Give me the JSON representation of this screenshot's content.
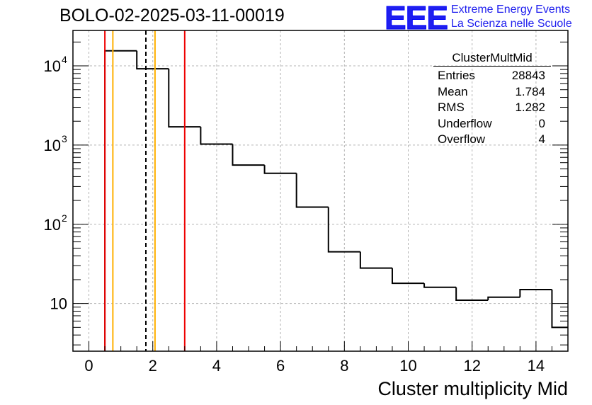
{
  "title": "BOLO-02-2025-03-11-00019",
  "logo": {
    "mark": "EEE",
    "line1": "Extreme Energy Events",
    "line2": "La Scienza nelle Scuole",
    "color": "#1f1fee"
  },
  "stats_box": {
    "name": "ClusterMultMid",
    "rows": [
      {
        "label": "Entries",
        "value": "28843"
      },
      {
        "label": "Mean",
        "value": "1.784"
      },
      {
        "label": "RMS",
        "value": "1.282"
      },
      {
        "label": "Underflow",
        "value": "0"
      },
      {
        "label": "Overflow",
        "value": "4"
      }
    ]
  },
  "chart_data": {
    "type": "bar",
    "style": "step-histogram",
    "title": "BOLO-02-2025-03-11-00019",
    "xlabel": "Cluster multiplicity Mid",
    "ylabel": "",
    "xlim": [
      -0.5,
      15.0
    ],
    "ylim": [
      2.5,
      28000
    ],
    "yscale": "log",
    "grid": true,
    "x_ticks": [
      0,
      2,
      4,
      6,
      8,
      10,
      12,
      14
    ],
    "y_ticks": [
      {
        "value": 10,
        "label": "10"
      },
      {
        "value": 100,
        "label": "10",
        "exp": "2"
      },
      {
        "value": 1000,
        "label": "10",
        "exp": "3"
      },
      {
        "value": 10000,
        "label": "10",
        "exp": "4"
      }
    ],
    "bin_edges": [
      0.5,
      1.5,
      2.5,
      3.5,
      4.5,
      5.5,
      6.5,
      7.5,
      8.5,
      9.5,
      10.5,
      11.5,
      12.5,
      13.5,
      14.5,
      15.5
    ],
    "values": [
      15500,
      9200,
      1700,
      1030,
      560,
      440,
      165,
      45,
      28,
      18,
      16,
      11,
      12,
      15,
      5
    ],
    "vertical_lines": [
      {
        "x": 0.5,
        "color": "#ee0000",
        "style": "solid"
      },
      {
        "x": 0.75,
        "color": "#ffb000",
        "style": "solid"
      },
      {
        "x": 1.784,
        "color": "#000000",
        "style": "dashed"
      },
      {
        "x": 2.07,
        "color": "#ffb000",
        "style": "solid"
      },
      {
        "x": 3.0,
        "color": "#ee0000",
        "style": "solid"
      }
    ]
  }
}
